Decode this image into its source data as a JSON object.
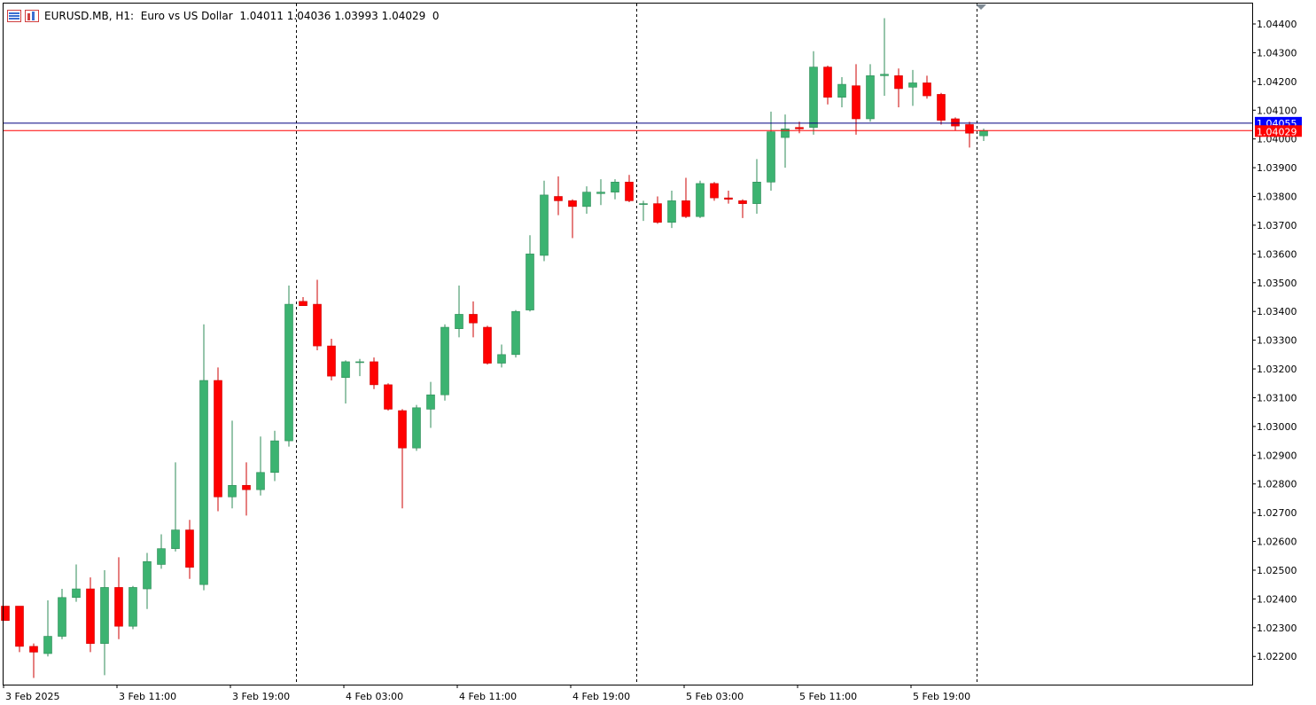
{
  "header": {
    "symbol": "EURUSD.MB",
    "timeframe": "H1:",
    "description": "Euro vs US Dollar",
    "ohlc": "1.04011 1.04036 1.03993 1.04029",
    "volume": "0",
    "icons": [
      "chart-window-icon",
      "trade-levels-icon"
    ]
  },
  "price_labels": {
    "ask": "1.04055",
    "bid": "1.04029",
    "ask_color": "#0000ff",
    "bid_color": "#ff0000"
  },
  "colors": {
    "bull": "#3cb371",
    "bear": "#ff0000",
    "wick_bull": "#2e8b57",
    "wick_bear": "#cc0000",
    "grid_separator": "#000000",
    "ask_line": "#000080",
    "bid_line": "#ff0000"
  },
  "chart_data": {
    "type": "candlestick",
    "timeframe": "H1",
    "ylim": [
      1.0213,
      1.0444
    ],
    "y_ticks": [
      "1.04400",
      "1.04300",
      "1.04200",
      "1.04100",
      "1.04000",
      "1.03900",
      "1.03800",
      "1.03700",
      "1.03600",
      "1.03500",
      "1.03400",
      "1.03300",
      "1.03200",
      "1.03100",
      "1.03000",
      "1.02900",
      "1.02800",
      "1.02700",
      "1.02600",
      "1.02500",
      "1.02400",
      "1.02300",
      "1.02200"
    ],
    "x_labels": [
      "3 Feb 2025",
      "3 Feb 11:00",
      "3 Feb 19:00",
      "4 Feb 03:00",
      "4 Feb 11:00",
      "4 Feb 19:00",
      "5 Feb 03:00",
      "5 Feb 11:00",
      "5 Feb 19:00"
    ],
    "x_label_bars": [
      0,
      8,
      16,
      24,
      32,
      40,
      48,
      56,
      64
    ],
    "day_separator_bars": [
      21,
      45,
      69
    ],
    "candles": [
      {
        "o": 1.02375,
        "h": 1.02375,
        "l": 1.02325,
        "c": 1.02325
      },
      {
        "o": 1.02375,
        "h": 1.02375,
        "l": 1.02215,
        "c": 1.02235
      },
      {
        "o": 1.02235,
        "h": 1.02245,
        "l": 1.02125,
        "c": 1.02215
      },
      {
        "o": 1.0221,
        "h": 1.02395,
        "l": 1.022,
        "c": 1.0227
      },
      {
        "o": 1.0227,
        "h": 1.02435,
        "l": 1.0226,
        "c": 1.02405
      },
      {
        "o": 1.02405,
        "h": 1.0252,
        "l": 1.0239,
        "c": 1.02435
      },
      {
        "o": 1.02435,
        "h": 1.02475,
        "l": 1.02215,
        "c": 1.02245
      },
      {
        "o": 1.02245,
        "h": 1.025,
        "l": 1.02135,
        "c": 1.0244
      },
      {
        "o": 1.0244,
        "h": 1.02545,
        "l": 1.0226,
        "c": 1.02305
      },
      {
        "o": 1.02305,
        "h": 1.02445,
        "l": 1.02295,
        "c": 1.0244
      },
      {
        "o": 1.02435,
        "h": 1.0256,
        "l": 1.02365,
        "c": 1.0253
      },
      {
        "o": 1.0252,
        "h": 1.02625,
        "l": 1.02505,
        "c": 1.02575
      },
      {
        "o": 1.02575,
        "h": 1.02875,
        "l": 1.02565,
        "c": 1.0264
      },
      {
        "o": 1.0264,
        "h": 1.02675,
        "l": 1.0247,
        "c": 1.0251
      },
      {
        "o": 1.0245,
        "h": 1.03355,
        "l": 1.0243,
        "c": 1.0316
      },
      {
        "o": 1.0316,
        "h": 1.03205,
        "l": 1.02705,
        "c": 1.02755
      },
      {
        "o": 1.02755,
        "h": 1.0302,
        "l": 1.02715,
        "c": 1.02795
      },
      {
        "o": 1.02795,
        "h": 1.02875,
        "l": 1.0269,
        "c": 1.0278
      },
      {
        "o": 1.0278,
        "h": 1.02965,
        "l": 1.0276,
        "c": 1.0284
      },
      {
        "o": 1.0284,
        "h": 1.02985,
        "l": 1.0281,
        "c": 1.0295
      },
      {
        "o": 1.0295,
        "h": 1.0349,
        "l": 1.0293,
        "c": 1.03425
      },
      {
        "o": 1.03435,
        "h": 1.0345,
        "l": 1.0342,
        "c": 1.0342
      },
      {
        "o": 1.03425,
        "h": 1.0351,
        "l": 1.03265,
        "c": 1.0328
      },
      {
        "o": 1.0328,
        "h": 1.03305,
        "l": 1.0316,
        "c": 1.03175
      },
      {
        "o": 1.0317,
        "h": 1.0323,
        "l": 1.0308,
        "c": 1.03225
      },
      {
        "o": 1.03225,
        "h": 1.03235,
        "l": 1.03175,
        "c": 1.03225
      },
      {
        "o": 1.03225,
        "h": 1.0324,
        "l": 1.0313,
        "c": 1.03145
      },
      {
        "o": 1.03145,
        "h": 1.0315,
        "l": 1.03055,
        "c": 1.0306
      },
      {
        "o": 1.03055,
        "h": 1.0306,
        "l": 1.02715,
        "c": 1.02925
      },
      {
        "o": 1.02925,
        "h": 1.03075,
        "l": 1.02915,
        "c": 1.03065
      },
      {
        "o": 1.0306,
        "h": 1.03155,
        "l": 1.02995,
        "c": 1.0311
      },
      {
        "o": 1.0311,
        "h": 1.03355,
        "l": 1.0309,
        "c": 1.03345
      },
      {
        "o": 1.0334,
        "h": 1.0349,
        "l": 1.0331,
        "c": 1.0339
      },
      {
        "o": 1.0339,
        "h": 1.03435,
        "l": 1.0331,
        "c": 1.0336
      },
      {
        "o": 1.03345,
        "h": 1.0335,
        "l": 1.03215,
        "c": 1.0322
      },
      {
        "o": 1.0322,
        "h": 1.03285,
        "l": 1.03205,
        "c": 1.0325
      },
      {
        "o": 1.0325,
        "h": 1.03405,
        "l": 1.0324,
        "c": 1.034
      },
      {
        "o": 1.03405,
        "h": 1.03665,
        "l": 1.034,
        "c": 1.036
      },
      {
        "o": 1.03595,
        "h": 1.03855,
        "l": 1.03575,
        "c": 1.03805
      },
      {
        "o": 1.038,
        "h": 1.0387,
        "l": 1.03735,
        "c": 1.03785
      },
      {
        "o": 1.03785,
        "h": 1.0379,
        "l": 1.03655,
        "c": 1.03765
      },
      {
        "o": 1.03765,
        "h": 1.03835,
        "l": 1.0374,
        "c": 1.03815
      },
      {
        "o": 1.0381,
        "h": 1.0386,
        "l": 1.0377,
        "c": 1.03815
      },
      {
        "o": 1.03815,
        "h": 1.0386,
        "l": 1.0379,
        "c": 1.0385
      },
      {
        "o": 1.0385,
        "h": 1.03875,
        "l": 1.0378,
        "c": 1.03785
      },
      {
        "o": 1.03775,
        "h": 1.03785,
        "l": 1.03715,
        "c": 1.03775
      },
      {
        "o": 1.03775,
        "h": 1.038,
        "l": 1.03705,
        "c": 1.0371
      },
      {
        "o": 1.0371,
        "h": 1.0382,
        "l": 1.0369,
        "c": 1.03785
      },
      {
        "o": 1.03785,
        "h": 1.03865,
        "l": 1.03725,
        "c": 1.0373
      },
      {
        "o": 1.0373,
        "h": 1.03855,
        "l": 1.03725,
        "c": 1.03845
      },
      {
        "o": 1.03845,
        "h": 1.0385,
        "l": 1.03785,
        "c": 1.03795
      },
      {
        "o": 1.03795,
        "h": 1.0382,
        "l": 1.03775,
        "c": 1.0379
      },
      {
        "o": 1.03785,
        "h": 1.0379,
        "l": 1.03725,
        "c": 1.03775
      },
      {
        "o": 1.03775,
        "h": 1.0393,
        "l": 1.0374,
        "c": 1.0385
      },
      {
        "o": 1.0385,
        "h": 1.04095,
        "l": 1.0382,
        "c": 1.04025
      },
      {
        "o": 1.04005,
        "h": 1.04085,
        "l": 1.039,
        "c": 1.04035
      },
      {
        "o": 1.0404,
        "h": 1.0406,
        "l": 1.0402,
        "c": 1.04035
      },
      {
        "o": 1.0404,
        "h": 1.04305,
        "l": 1.04015,
        "c": 1.0425
      },
      {
        "o": 1.0425,
        "h": 1.04255,
        "l": 1.0412,
        "c": 1.04145
      },
      {
        "o": 1.04145,
        "h": 1.04215,
        "l": 1.0411,
        "c": 1.0419
      },
      {
        "o": 1.04185,
        "h": 1.0426,
        "l": 1.04015,
        "c": 1.0407
      },
      {
        "o": 1.0407,
        "h": 1.0426,
        "l": 1.0406,
        "c": 1.0422
      },
      {
        "o": 1.0422,
        "h": 1.0442,
        "l": 1.0415,
        "c": 1.04225
      },
      {
        "o": 1.0422,
        "h": 1.04245,
        "l": 1.0411,
        "c": 1.04175
      },
      {
        "o": 1.0418,
        "h": 1.0424,
        "l": 1.04115,
        "c": 1.04195
      },
      {
        "o": 1.04195,
        "h": 1.0422,
        "l": 1.0414,
        "c": 1.0415
      },
      {
        "o": 1.04155,
        "h": 1.0416,
        "l": 1.0405,
        "c": 1.04065
      },
      {
        "o": 1.0407,
        "h": 1.04075,
        "l": 1.0403,
        "c": 1.04045
      },
      {
        "o": 1.0405,
        "h": 1.0406,
        "l": 1.0397,
        "c": 1.0402
      },
      {
        "o": 1.04011,
        "h": 1.04036,
        "l": 1.03993,
        "c": 1.04029
      }
    ],
    "ask": 1.04055,
    "bid": 1.04029
  }
}
